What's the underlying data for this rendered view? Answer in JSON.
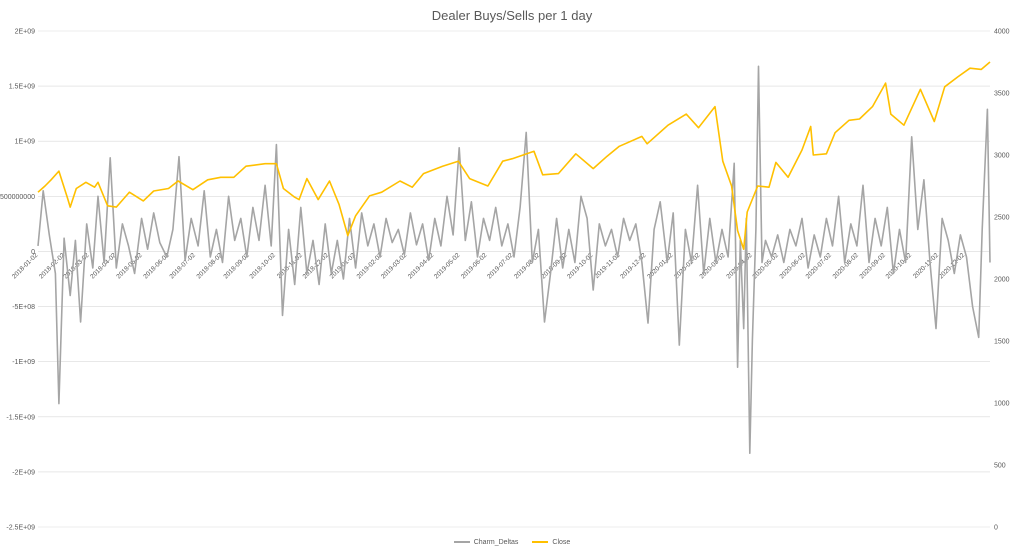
{
  "chart_data": {
    "type": "line",
    "title": "Dealer Buys/Sells per 1 day",
    "xlabel": "",
    "ylabel": "",
    "y_left": {
      "min": -2500000000,
      "max": 2000000000,
      "tick_values": [
        2000000000,
        1500000000,
        1000000000,
        500000000,
        0,
        -500000000,
        -1000000000,
        -1500000000,
        -2000000000,
        -2500000000
      ],
      "tick_labels": [
        "2E+09",
        "1.5E+09",
        "1E+09",
        "500000000",
        "0",
        "-5E+08",
        "-1E+09",
        "-1.5E+09",
        "-2E+09",
        "-2.5E+09"
      ]
    },
    "y_right": {
      "min": 0,
      "max": 4000,
      "tick_values": [
        4000,
        3500,
        3000,
        2500,
        2000,
        1500,
        1000,
        500,
        0
      ],
      "tick_labels": [
        "4000",
        "3500",
        "3000",
        "2500",
        "2000",
        "1500",
        "1000",
        "500",
        "0"
      ]
    },
    "x_tick_labels": [
      "2018-01-02",
      "2018-02-02",
      "2018-03-02",
      "2018-04-02",
      "2018-05-02",
      "2018-06-02",
      "2018-07-02",
      "2018-08-02",
      "2018-09-02",
      "2018-10-02",
      "2018-11-02",
      "2018-12-02",
      "2019-01-02",
      "2019-02-02",
      "2019-03-02",
      "2019-04-02",
      "2019-05-02",
      "2019-06-02",
      "2019-07-02",
      "2019-08-02",
      "2019-09-02",
      "2019-10-02",
      "2019-11-02",
      "2019-12-02",
      "2020-01-02",
      "2020-02-02",
      "2020-03-02",
      "2020-04-02",
      "2020-05-02",
      "2020-06-02",
      "2020-07-02",
      "2020-08-02",
      "2020-09-02",
      "2020-10-02",
      "2020-11-02",
      "2020-12-02"
    ],
    "grid": true,
    "legend_position": "bottom",
    "series": [
      {
        "name": "Charm_Deltas",
        "axis": "left",
        "color": "#a5a5a5",
        "points": [
          [
            "2018-01-02",
            50000000
          ],
          [
            "2018-01-08",
            550000000
          ],
          [
            "2018-01-15",
            150000000
          ],
          [
            "2018-01-22",
            -200000000
          ],
          [
            "2018-01-26",
            -1380000000
          ],
          [
            "2018-02-01",
            120000000
          ],
          [
            "2018-02-08",
            -400000000
          ],
          [
            "2018-02-14",
            100000000
          ],
          [
            "2018-02-20",
            -640000000
          ],
          [
            "2018-02-27",
            250000000
          ],
          [
            "2018-03-06",
            -150000000
          ],
          [
            "2018-03-12",
            500000000
          ],
          [
            "2018-03-19",
            -100000000
          ],
          [
            "2018-03-26",
            850000000
          ],
          [
            "2018-04-02",
            -150000000
          ],
          [
            "2018-04-09",
            250000000
          ],
          [
            "2018-04-16",
            50000000
          ],
          [
            "2018-04-23",
            -200000000
          ],
          [
            "2018-05-01",
            300000000
          ],
          [
            "2018-05-08",
            20000000
          ],
          [
            "2018-05-15",
            350000000
          ],
          [
            "2018-05-22",
            80000000
          ],
          [
            "2018-05-30",
            -50000000
          ],
          [
            "2018-06-06",
            200000000
          ],
          [
            "2018-06-13",
            860000000
          ],
          [
            "2018-06-20",
            -80000000
          ],
          [
            "2018-06-27",
            300000000
          ],
          [
            "2018-07-05",
            50000000
          ],
          [
            "2018-07-12",
            550000000
          ],
          [
            "2018-07-19",
            -50000000
          ],
          [
            "2018-07-26",
            200000000
          ],
          [
            "2018-08-02",
            -100000000
          ],
          [
            "2018-08-09",
            500000000
          ],
          [
            "2018-08-16",
            100000000
          ],
          [
            "2018-08-23",
            300000000
          ],
          [
            "2018-08-30",
            -50000000
          ],
          [
            "2018-09-06",
            400000000
          ],
          [
            "2018-09-13",
            100000000
          ],
          [
            "2018-09-20",
            600000000
          ],
          [
            "2018-09-27",
            50000000
          ],
          [
            "2018-10-03",
            970000000
          ],
          [
            "2018-10-10",
            -580000000
          ],
          [
            "2018-10-17",
            200000000
          ],
          [
            "2018-10-24",
            -300000000
          ],
          [
            "2018-10-31",
            400000000
          ],
          [
            "2018-11-07",
            -200000000
          ],
          [
            "2018-11-14",
            100000000
          ],
          [
            "2018-11-21",
            -300000000
          ],
          [
            "2018-11-28",
            250000000
          ],
          [
            "2018-12-05",
            -200000000
          ],
          [
            "2018-12-12",
            100000000
          ],
          [
            "2018-12-19",
            -250000000
          ],
          [
            "2018-12-26",
            300000000
          ],
          [
            "2019-01-02",
            -150000000
          ],
          [
            "2019-01-09",
            350000000
          ],
          [
            "2019-01-16",
            50000000
          ],
          [
            "2019-01-23",
            250000000
          ],
          [
            "2019-01-30",
            -50000000
          ],
          [
            "2019-02-06",
            300000000
          ],
          [
            "2019-02-13",
            80000000
          ],
          [
            "2019-02-20",
            200000000
          ],
          [
            "2019-02-27",
            -30000000
          ],
          [
            "2019-03-06",
            350000000
          ],
          [
            "2019-03-13",
            60000000
          ],
          [
            "2019-03-20",
            250000000
          ],
          [
            "2019-03-27",
            -80000000
          ],
          [
            "2019-04-03",
            300000000
          ],
          [
            "2019-04-10",
            50000000
          ],
          [
            "2019-04-17",
            500000000
          ],
          [
            "2019-04-24",
            150000000
          ],
          [
            "2019-05-01",
            940000000
          ],
          [
            "2019-05-08",
            100000000
          ],
          [
            "2019-05-15",
            450000000
          ],
          [
            "2019-05-22",
            -50000000
          ],
          [
            "2019-05-29",
            300000000
          ],
          [
            "2019-06-05",
            100000000
          ],
          [
            "2019-06-12",
            400000000
          ],
          [
            "2019-06-19",
            50000000
          ],
          [
            "2019-06-26",
            250000000
          ],
          [
            "2019-07-03",
            -50000000
          ],
          [
            "2019-07-10",
            400000000
          ],
          [
            "2019-07-17",
            1080000000
          ],
          [
            "2019-07-24",
            -100000000
          ],
          [
            "2019-07-31",
            200000000
          ],
          [
            "2019-08-07",
            -640000000
          ],
          [
            "2019-08-14",
            -200000000
          ],
          [
            "2019-08-21",
            300000000
          ],
          [
            "2019-08-28",
            -150000000
          ],
          [
            "2019-09-04",
            200000000
          ],
          [
            "2019-09-11",
            -100000000
          ],
          [
            "2019-09-18",
            500000000
          ],
          [
            "2019-09-25",
            300000000
          ],
          [
            "2019-10-02",
            -350000000
          ],
          [
            "2019-10-09",
            250000000
          ],
          [
            "2019-10-16",
            50000000
          ],
          [
            "2019-10-23",
            200000000
          ],
          [
            "2019-10-30",
            -50000000
          ],
          [
            "2019-11-06",
            300000000
          ],
          [
            "2019-11-13",
            100000000
          ],
          [
            "2019-11-20",
            250000000
          ],
          [
            "2019-11-27",
            -100000000
          ],
          [
            "2019-12-04",
            -650000000
          ],
          [
            "2019-12-11",
            200000000
          ],
          [
            "2019-12-18",
            450000000
          ],
          [
            "2019-12-26",
            -100000000
          ],
          [
            "2020-01-02",
            350000000
          ],
          [
            "2020-01-09",
            -850000000
          ],
          [
            "2020-01-16",
            200000000
          ],
          [
            "2020-01-23",
            -100000000
          ],
          [
            "2020-01-30",
            600000000
          ],
          [
            "2020-02-06",
            -200000000
          ],
          [
            "2020-02-13",
            300000000
          ],
          [
            "2020-02-20",
            -100000000
          ],
          [
            "2020-02-27",
            200000000
          ],
          [
            "2020-03-05",
            -50000000
          ],
          [
            "2020-03-12",
            800000000
          ],
          [
            "2020-03-16",
            -1050000000
          ],
          [
            "2020-03-19",
            100000000
          ],
          [
            "2020-03-23",
            -700000000
          ],
          [
            "2020-03-26",
            300000000
          ],
          [
            "2020-03-30",
            -1830000000
          ],
          [
            "2020-04-02",
            -800000000
          ],
          [
            "2020-04-06",
            200000000
          ],
          [
            "2020-04-09",
            1680000000
          ],
          [
            "2020-04-13",
            -100000000
          ],
          [
            "2020-04-17",
            100000000
          ],
          [
            "2020-04-24",
            -50000000
          ],
          [
            "2020-05-01",
            150000000
          ],
          [
            "2020-05-08",
            -100000000
          ],
          [
            "2020-05-15",
            200000000
          ],
          [
            "2020-05-22",
            50000000
          ],
          [
            "2020-05-29",
            300000000
          ],
          [
            "2020-06-05",
            -150000000
          ],
          [
            "2020-06-12",
            150000000
          ],
          [
            "2020-06-19",
            -50000000
          ],
          [
            "2020-06-26",
            300000000
          ],
          [
            "2020-07-03",
            50000000
          ],
          [
            "2020-07-10",
            500000000
          ],
          [
            "2020-07-17",
            -100000000
          ],
          [
            "2020-07-24",
            250000000
          ],
          [
            "2020-07-31",
            50000000
          ],
          [
            "2020-08-07",
            600000000
          ],
          [
            "2020-08-14",
            -100000000
          ],
          [
            "2020-08-21",
            300000000
          ],
          [
            "2020-08-28",
            50000000
          ],
          [
            "2020-09-04",
            400000000
          ],
          [
            "2020-09-11",
            -200000000
          ],
          [
            "2020-09-18",
            200000000
          ],
          [
            "2020-09-25",
            -100000000
          ],
          [
            "2020-10-02",
            1040000000
          ],
          [
            "2020-10-09",
            200000000
          ],
          [
            "2020-10-16",
            650000000
          ],
          [
            "2020-10-23",
            -100000000
          ],
          [
            "2020-10-30",
            -700000000
          ],
          [
            "2020-11-06",
            300000000
          ],
          [
            "2020-11-13",
            100000000
          ],
          [
            "2020-11-20",
            -200000000
          ],
          [
            "2020-11-27",
            150000000
          ],
          [
            "2020-12-04",
            -50000000
          ],
          [
            "2020-12-11",
            -500000000
          ],
          [
            "2020-12-18",
            -780000000
          ],
          [
            "2020-12-22",
            200000000
          ],
          [
            "2020-12-28",
            1290000000
          ],
          [
            "2020-12-31",
            -100000000
          ]
        ]
      },
      {
        "name": "Close",
        "axis": "right",
        "color": "#ffc000",
        "points": [
          [
            "2018-01-02",
            2700
          ],
          [
            "2018-01-10",
            2750
          ],
          [
            "2018-01-17",
            2800
          ],
          [
            "2018-01-26",
            2870
          ],
          [
            "2018-02-05",
            2650
          ],
          [
            "2018-02-08",
            2580
          ],
          [
            "2018-02-15",
            2730
          ],
          [
            "2018-02-26",
            2780
          ],
          [
            "2018-03-08",
            2740
          ],
          [
            "2018-03-12",
            2780
          ],
          [
            "2018-03-23",
            2590
          ],
          [
            "2018-04-02",
            2580
          ],
          [
            "2018-04-17",
            2700
          ],
          [
            "2018-05-03",
            2630
          ],
          [
            "2018-05-15",
            2710
          ],
          [
            "2018-06-01",
            2730
          ],
          [
            "2018-06-12",
            2790
          ],
          [
            "2018-06-29",
            2720
          ],
          [
            "2018-07-16",
            2800
          ],
          [
            "2018-07-31",
            2820
          ],
          [
            "2018-08-15",
            2820
          ],
          [
            "2018-08-29",
            2910
          ],
          [
            "2018-09-20",
            2930
          ],
          [
            "2018-10-03",
            2930
          ],
          [
            "2018-10-11",
            2730
          ],
          [
            "2018-10-24",
            2660
          ],
          [
            "2018-10-29",
            2640
          ],
          [
            "2018-11-07",
            2810
          ],
          [
            "2018-11-20",
            2640
          ],
          [
            "2018-12-03",
            2790
          ],
          [
            "2018-12-14",
            2600
          ],
          [
            "2018-12-24",
            2350
          ],
          [
            "2019-01-02",
            2510
          ],
          [
            "2019-01-18",
            2670
          ],
          [
            "2019-02-01",
            2700
          ],
          [
            "2019-02-22",
            2790
          ],
          [
            "2019-03-08",
            2740
          ],
          [
            "2019-03-21",
            2850
          ],
          [
            "2019-04-12",
            2910
          ],
          [
            "2019-04-30",
            2950
          ],
          [
            "2019-05-13",
            2810
          ],
          [
            "2019-06-03",
            2750
          ],
          [
            "2019-06-20",
            2950
          ],
          [
            "2019-07-01",
            2970
          ],
          [
            "2019-07-26",
            3030
          ],
          [
            "2019-08-05",
            2840
          ],
          [
            "2019-08-23",
            2850
          ],
          [
            "2019-09-12",
            3010
          ],
          [
            "2019-10-02",
            2890
          ],
          [
            "2019-10-18",
            2990
          ],
          [
            "2019-11-01",
            3070
          ],
          [
            "2019-11-27",
            3150
          ],
          [
            "2019-12-03",
            3090
          ],
          [
            "2019-12-27",
            3240
          ],
          [
            "2020-01-17",
            3330
          ],
          [
            "2020-01-31",
            3220
          ],
          [
            "2020-02-19",
            3390
          ],
          [
            "2020-02-28",
            2950
          ],
          [
            "2020-03-09",
            2750
          ],
          [
            "2020-03-16",
            2390
          ],
          [
            "2020-03-23",
            2240
          ],
          [
            "2020-03-27",
            2540
          ],
          [
            "2020-04-08",
            2750
          ],
          [
            "2020-04-21",
            2740
          ],
          [
            "2020-04-29",
            2940
          ],
          [
            "2020-05-13",
            2820
          ],
          [
            "2020-05-29",
            3040
          ],
          [
            "2020-06-08",
            3230
          ],
          [
            "2020-06-11",
            3000
          ],
          [
            "2020-06-26",
            3010
          ],
          [
            "2020-07-06",
            3180
          ],
          [
            "2020-07-22",
            3280
          ],
          [
            "2020-08-03",
            3290
          ],
          [
            "2020-08-18",
            3390
          ],
          [
            "2020-09-02",
            3580
          ],
          [
            "2020-09-08",
            3330
          ],
          [
            "2020-09-23",
            3240
          ],
          [
            "2020-10-12",
            3530
          ],
          [
            "2020-10-28",
            3270
          ],
          [
            "2020-11-09",
            3550
          ],
          [
            "2020-11-24",
            3630
          ],
          [
            "2020-12-08",
            3700
          ],
          [
            "2020-12-21",
            3690
          ],
          [
            "2020-12-31",
            3750
          ]
        ]
      }
    ]
  }
}
